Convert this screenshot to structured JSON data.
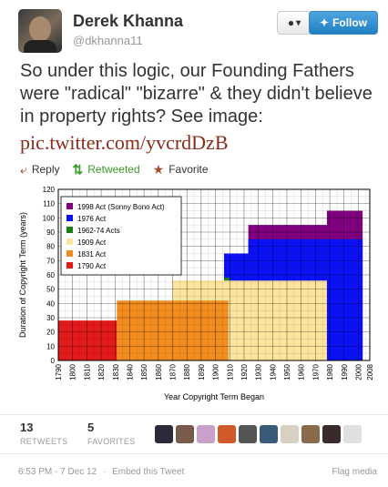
{
  "header": {
    "name": "Derek Khanna",
    "handle": "@dkhanna11",
    "user_button": "▾",
    "follow_label": "Follow"
  },
  "tweet": {
    "text": "So under this logic, our Founding Fathers were \"radical\" \"bizarre\" & they didn't believe in property rights? See image:",
    "link": "pic.twitter.com/yvcrdDzB"
  },
  "actions": {
    "reply": "Reply",
    "retweeted": "Retweeted",
    "favorite": "Favorite"
  },
  "chart_data": {
    "type": "area",
    "title": "",
    "xlabel": "Year Copyright Term Began",
    "ylabel": "Duration of Copyright Term (years)",
    "xlim": [
      1790,
      2008
    ],
    "ylim": [
      0,
      120
    ],
    "xticks": [
      1790,
      1800,
      1810,
      1820,
      1830,
      1840,
      1850,
      1860,
      1870,
      1880,
      1890,
      1900,
      1910,
      1920,
      1930,
      1940,
      1950,
      1960,
      1970,
      1980,
      1990,
      2000,
      2008
    ],
    "yticks": [
      0,
      10,
      20,
      30,
      40,
      50,
      60,
      70,
      80,
      90,
      100,
      110,
      120
    ],
    "grid": true,
    "legend_position": "top-left",
    "series": [
      {
        "name": "1790 Act",
        "color": "#e31a1c",
        "steps": [
          [
            1790,
            28
          ],
          [
            1831,
            28
          ]
        ]
      },
      {
        "name": "1831 Act",
        "color": "#f28c1e",
        "steps": [
          [
            1831,
            42
          ],
          [
            1909,
            42
          ]
        ]
      },
      {
        "name": "1909 Act",
        "color": "#fde49c",
        "steps": [
          [
            1870,
            56
          ],
          [
            1978,
            56
          ]
        ]
      },
      {
        "name": "1962-74 Acts",
        "color": "#1a7f1a",
        "steps": [
          [
            1906,
            58
          ],
          [
            1910,
            70
          ]
        ]
      },
      {
        "name": "1976 Act",
        "color": "#0a12f5",
        "steps": [
          [
            1906,
            75
          ],
          [
            1923,
            75
          ],
          [
            1923,
            85
          ],
          [
            1978,
            85
          ],
          [
            2003,
            85
          ]
        ]
      },
      {
        "name": "1998 Act (Sonny Bono Act)",
        "color": "#800080",
        "steps": [
          [
            1923,
            95
          ],
          [
            1978,
            95
          ],
          [
            1978,
            105
          ],
          [
            2003,
            105
          ]
        ]
      }
    ],
    "legend": [
      "1998 Act (Sonny Bono Act)",
      "1976 Act",
      "1962-74 Acts",
      "1909 Act",
      "1831 Act",
      "1790 Act"
    ]
  },
  "stats": {
    "retweets_count": "13",
    "retweets_label": "RETWEETS",
    "favorites_count": "5",
    "favorites_label": "FAVORITES"
  },
  "footer": {
    "timestamp": "6:53 PM - 7 Dec 12",
    "separator": "·",
    "embed": "Embed this Tweet",
    "flag": "Flag media"
  },
  "colors": {
    "follow_blue": "#1f7fc4",
    "link": "#8b2c1a",
    "retweet_green": "#3a9a2a"
  }
}
